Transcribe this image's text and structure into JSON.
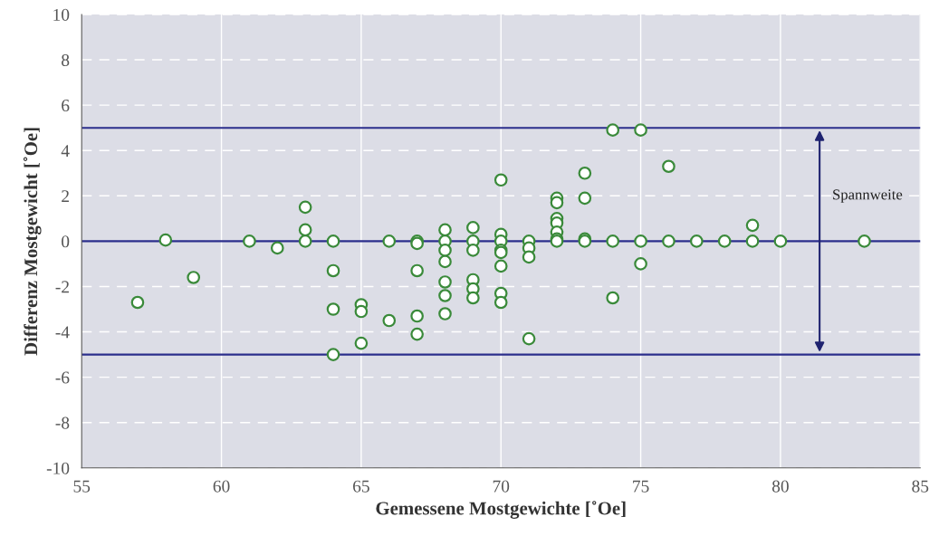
{
  "chart_data": {
    "type": "scatter",
    "xlabel": "Gemessene Mostgewichte [˚Oe]",
    "ylabel": "Differenz Mostgewicht [˚Oe]",
    "x": [
      57,
      58,
      59,
      61,
      62,
      63,
      63,
      63,
      64,
      64,
      64,
      64,
      65,
      65,
      65,
      66,
      66,
      67,
      67,
      67,
      67,
      67,
      68,
      68,
      68,
      68,
      68,
      68,
      68,
      69,
      69,
      69,
      69,
      69,
      69,
      70,
      70,
      70,
      70,
      70,
      70,
      70,
      70,
      71,
      71,
      71,
      71,
      72,
      72,
      72,
      72,
      72,
      72,
      72,
      73,
      73,
      73,
      73,
      74,
      74,
      74,
      75,
      75,
      75,
      76,
      76,
      77,
      78,
      79,
      79,
      80,
      83
    ],
    "series": [
      {
        "color": "#3a8a3a",
        "values": [
          -2.7,
          0.05,
          -1.6,
          0,
          -0.3,
          1.5,
          0.5,
          0,
          0,
          -1.3,
          -3.0,
          -5.0,
          -2.8,
          -3.1,
          -4.5,
          -3.5,
          0,
          0,
          -0.1,
          -1.3,
          -3.3,
          -4.1,
          0.5,
          0,
          -0.4,
          -0.9,
          -1.8,
          -2.4,
          -3.2,
          0.6,
          0,
          -0.4,
          -1.7,
          -2.1,
          -2.5,
          2.7,
          0.3,
          0,
          -0.4,
          -0.5,
          -1.1,
          -2.3,
          -2.7,
          0,
          -0.3,
          -0.7,
          -4.3,
          1.9,
          1.7,
          1.0,
          0.8,
          0.4,
          0.1,
          0,
          3.0,
          1.9,
          0.1,
          0,
          4.9,
          0,
          -2.5,
          4.9,
          0,
          -1.0,
          3.3,
          0,
          0,
          0,
          0.7,
          0,
          0,
          0
        ]
      }
    ],
    "marker": "circle",
    "grid": true,
    "xlim": [
      55,
      85
    ],
    "xticks": [
      55,
      60,
      65,
      70,
      75,
      80,
      85
    ],
    "ylim": [
      -10,
      10
    ],
    "yticks": [
      -10,
      -8,
      -6,
      -4,
      -2,
      0,
      2,
      4,
      6,
      8,
      10
    ],
    "ref_lines": [
      {
        "axis": "y",
        "value": 5,
        "color": "#2b2e8c"
      },
      {
        "axis": "y",
        "value": 0,
        "color": "#2b2e8c"
      },
      {
        "axis": "y",
        "value": -5,
        "color": "#2b2e8c"
      }
    ],
    "annotations": [
      "Spannweite"
    ]
  }
}
